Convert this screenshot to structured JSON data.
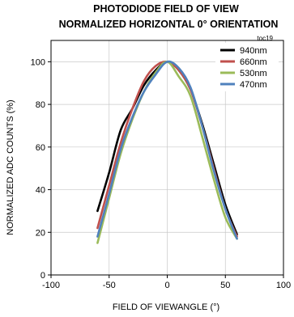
{
  "chart_data": {
    "type": "line",
    "title": "PHOTODIODE FIELD OF VIEW",
    "subtitle": "NORMALIZED HORIZONTAL 0° ORIENTATION",
    "note": "toc19",
    "xlabel": "FIELD OF VIEWANGLE (°)",
    "ylabel": "NORMALIZED ADC COUNTS (%)",
    "xlim": [
      -100,
      100
    ],
    "ylim": [
      0,
      110
    ],
    "xticks": [
      -100,
      -50,
      0,
      50,
      100
    ],
    "yticks": [
      0,
      20,
      40,
      60,
      80,
      100
    ],
    "xtick_labels": [
      "-100",
      "-50",
      "0",
      "50",
      "100"
    ],
    "ytick_labels": [
      "0",
      "20",
      "40",
      "60",
      "80",
      "100"
    ],
    "grid": true,
    "legend_position": "top-right",
    "series": [
      {
        "name": "940nm",
        "color": "#000000",
        "x": [
          -60,
          -50,
          -40,
          -30,
          -20,
          -10,
          0,
          10,
          20,
          30,
          40,
          50,
          60
        ],
        "y": [
          30,
          48,
          68,
          78,
          89,
          96,
          100,
          96,
          87,
          71,
          52,
          33,
          19
        ]
      },
      {
        "name": "660nm",
        "color": "#c0504d",
        "x": [
          -60,
          -50,
          -40,
          -30,
          -20,
          -10,
          0,
          10,
          20,
          30,
          40,
          50,
          60
        ],
        "y": [
          22,
          42,
          62,
          78,
          91,
          98,
          100,
          96,
          87,
          70,
          50,
          31,
          18
        ]
      },
      {
        "name": "530nm",
        "color": "#9bbb59",
        "x": [
          -60,
          -50,
          -40,
          -30,
          -20,
          -10,
          0,
          10,
          20,
          30,
          40,
          50,
          60
        ],
        "y": [
          15,
          36,
          57,
          73,
          86,
          95,
          100,
          93,
          84,
          65,
          45,
          27,
          17
        ]
      },
      {
        "name": "470nm",
        "color": "#4f81bd",
        "x": [
          -60,
          -50,
          -40,
          -30,
          -20,
          -10,
          0,
          10,
          20,
          30,
          40,
          50,
          60
        ],
        "y": [
          18,
          38,
          59,
          74,
          86,
          94,
          100,
          97,
          88,
          70,
          49,
          31,
          17
        ]
      }
    ]
  }
}
